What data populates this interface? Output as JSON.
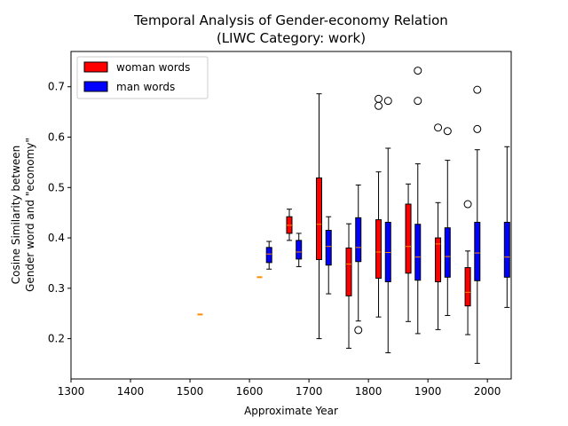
{
  "chart_data": {
    "type": "boxplot",
    "title": "Temporal Analysis of Gender-economy Relation",
    "subtitle": "(LIWC Category: work)",
    "xlabel": "Approximate Year",
    "ylabel_line1": "Cosine Similarity between",
    "ylabel_line2": "Gender word and \"economy\"",
    "xlim": [
      1300,
      2040
    ],
    "ylim": [
      0.12,
      0.77
    ],
    "x_ticks": [
      1300,
      1400,
      1500,
      1600,
      1700,
      1800,
      1900,
      2000
    ],
    "y_ticks": [
      0.2,
      0.3,
      0.4,
      0.5,
      0.6,
      0.7
    ],
    "legend_position": "top-left",
    "series": [
      {
        "name": "woman words",
        "color": "#ff0000",
        "boxes": [
          {
            "x": 1517,
            "whislo": 0.248,
            "q1": 0.248,
            "med": 0.248,
            "q3": 0.248,
            "whishi": 0.248,
            "fliers": []
          },
          {
            "x": 1617,
            "whislo": 0.322,
            "q1": 0.322,
            "med": 0.322,
            "q3": 0.322,
            "whishi": 0.322,
            "fliers": []
          },
          {
            "x": 1667,
            "whislo": 0.395,
            "q1": 0.409,
            "med": 0.425,
            "q3": 0.442,
            "whishi": 0.457,
            "fliers": []
          },
          {
            "x": 1717,
            "whislo": 0.2,
            "q1": 0.357,
            "med": 0.427,
            "q3": 0.519,
            "whishi": 0.686,
            "fliers": []
          },
          {
            "x": 1767,
            "whislo": 0.181,
            "q1": 0.285,
            "med": 0.348,
            "q3": 0.38,
            "whishi": 0.428,
            "fliers": []
          },
          {
            "x": 1817,
            "whislo": 0.243,
            "q1": 0.32,
            "med": 0.372,
            "q3": 0.436,
            "whishi": 0.531,
            "fliers": [
              0.662,
              0.676
            ]
          },
          {
            "x": 1867,
            "whislo": 0.234,
            "q1": 0.33,
            "med": 0.383,
            "q3": 0.467,
            "whishi": 0.507,
            "fliers": []
          },
          {
            "x": 1917,
            "whislo": 0.218,
            "q1": 0.313,
            "med": 0.388,
            "q3": 0.4,
            "whishi": 0.47,
            "fliers": [
              0.619
            ]
          },
          {
            "x": 1967,
            "whislo": 0.208,
            "q1": 0.265,
            "med": 0.292,
            "q3": 0.341,
            "whishi": 0.374,
            "fliers": [
              0.467
            ]
          }
        ]
      },
      {
        "name": "man words",
        "color": "#0000ff",
        "boxes": [
          {
            "x": 1633,
            "whislo": 0.338,
            "q1": 0.351,
            "med": 0.368,
            "q3": 0.381,
            "whishi": 0.393,
            "fliers": []
          },
          {
            "x": 1683,
            "whislo": 0.343,
            "q1": 0.358,
            "med": 0.372,
            "q3": 0.395,
            "whishi": 0.409,
            "fliers": []
          },
          {
            "x": 1733,
            "whislo": 0.289,
            "q1": 0.346,
            "med": 0.383,
            "q3": 0.415,
            "whishi": 0.442,
            "fliers": []
          },
          {
            "x": 1783,
            "whislo": 0.235,
            "q1": 0.353,
            "med": 0.381,
            "q3": 0.44,
            "whishi": 0.505,
            "fliers": [
              0.217
            ]
          },
          {
            "x": 1833,
            "whislo": 0.172,
            "q1": 0.313,
            "med": 0.371,
            "q3": 0.431,
            "whishi": 0.578,
            "fliers": [
              0.672
            ]
          },
          {
            "x": 1883,
            "whislo": 0.21,
            "q1": 0.316,
            "med": 0.362,
            "q3": 0.427,
            "whishi": 0.547,
            "fliers": [
              0.672,
              0.732
            ]
          },
          {
            "x": 1933,
            "whislo": 0.246,
            "q1": 0.322,
            "med": 0.363,
            "q3": 0.42,
            "whishi": 0.554,
            "fliers": [
              0.612
            ]
          },
          {
            "x": 1983,
            "whislo": 0.151,
            "q1": 0.315,
            "med": 0.37,
            "q3": 0.431,
            "whishi": 0.575,
            "fliers": [
              0.616,
              0.694
            ]
          },
          {
            "x": 2033,
            "whislo": 0.262,
            "q1": 0.322,
            "med": 0.362,
            "q3": 0.431,
            "whishi": 0.581,
            "fliers": []
          }
        ]
      }
    ]
  }
}
